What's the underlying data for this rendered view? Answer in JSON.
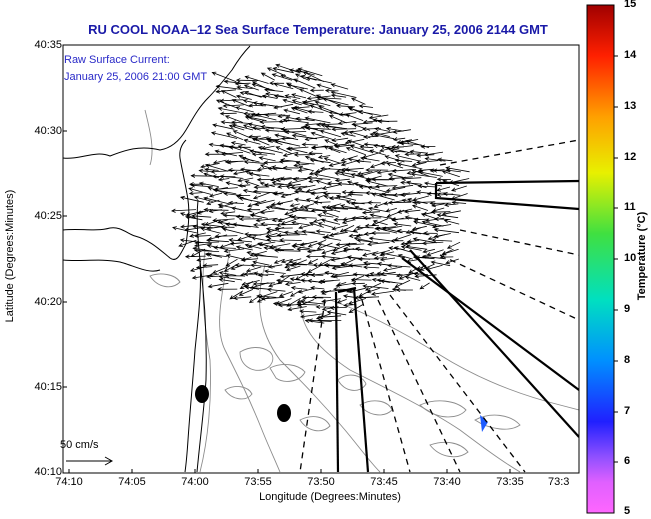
{
  "title": "RU COOL   NOAA–12  Sea Surface Temperature:  January 25, 2006 2144 GMT",
  "annotation": {
    "line1": "Raw Surface Current:",
    "line2": "January 25, 2006 21:00 GMT"
  },
  "scale": {
    "label": "50 cm/s"
  },
  "axes": {
    "ylabel": "Latitude (Degrees:Minutes)",
    "xlabel": "Longitude (Degrees:Minutes)",
    "lat_ticks": [
      "40:35",
      "40:30",
      "40:25",
      "40:20",
      "40:15",
      "40:10"
    ],
    "lon_ticks": [
      "74:10",
      "74:05",
      "74:00",
      "73:55",
      "73:50",
      "73:45",
      "73:40",
      "73:35",
      "73:3"
    ]
  },
  "colorbar": {
    "label": "Temperature (°C)",
    "ticks": [
      "15",
      "14",
      "13",
      "12",
      "11",
      "10",
      "9",
      "8",
      "7",
      "6",
      "5"
    ],
    "range": [
      5,
      15
    ]
  },
  "colors": {
    "title": "#1a1aa8",
    "annotation": "#2a2ac8",
    "sst_patch": "#1e5cff",
    "coast": "#000000",
    "bathymetry": "#8c8c8c"
  }
}
